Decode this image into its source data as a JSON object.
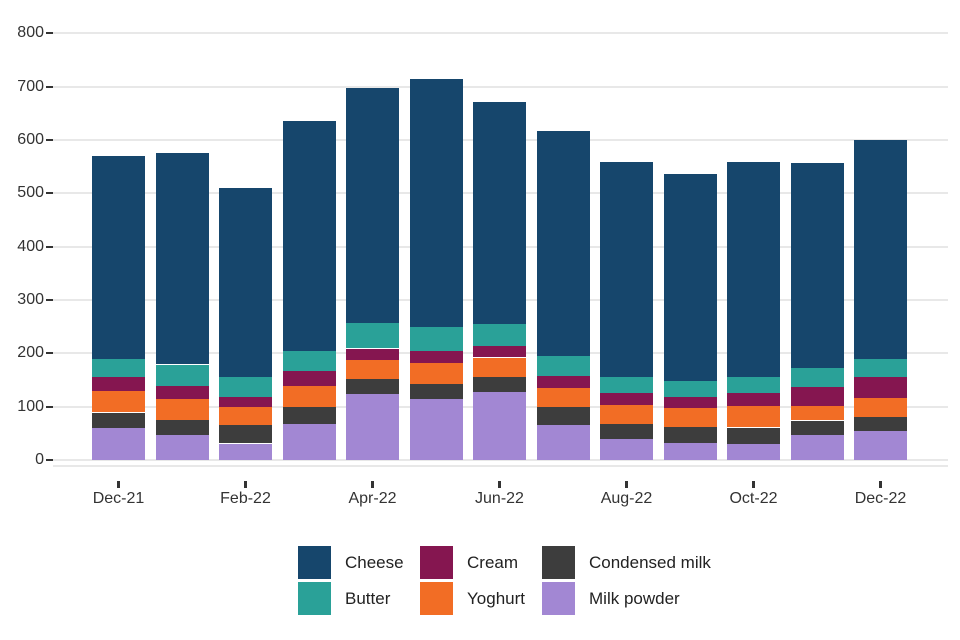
{
  "chart_data": {
    "type": "bar",
    "stacked": true,
    "title": "",
    "xlabel": "",
    "ylabel": "",
    "categories": [
      "Dec-21",
      "Jan-22",
      "Feb-22",
      "Mar-22",
      "Apr-22",
      "May-22",
      "Jun-22",
      "Jul-22",
      "Aug-22",
      "Sep-22",
      "Oct-22",
      "Nov-22",
      "Dec-22"
    ],
    "x_tick_labels": [
      "Dec-21",
      "Feb-22",
      "Apr-22",
      "Jun-22",
      "Aug-22",
      "Oct-22",
      "Dec-22"
    ],
    "x_tick_every": 2,
    "series": [
      {
        "name": "Milk powder",
        "color": "#A287D3",
        "values": [
          60,
          47,
          31,
          68,
          123,
          114,
          127,
          66,
          39,
          32,
          30,
          47,
          54
        ]
      },
      {
        "name": "Condensed milk",
        "color": "#3D3D3D",
        "values": [
          29,
          28,
          34,
          31,
          28,
          28,
          28,
          33,
          28,
          30,
          31,
          27,
          27
        ]
      },
      {
        "name": "Yoghurt",
        "color": "#F26D25",
        "values": [
          41,
          40,
          34,
          39,
          36,
          40,
          37,
          36,
          36,
          35,
          40,
          28,
          35
        ]
      },
      {
        "name": "Cream",
        "color": "#851650",
        "values": [
          26,
          23,
          19,
          28,
          22,
          22,
          22,
          23,
          23,
          22,
          25,
          35,
          39
        ]
      },
      {
        "name": "Butter",
        "color": "#2AA198",
        "values": [
          34,
          41,
          37,
          39,
          48,
          45,
          41,
          37,
          30,
          30,
          30,
          36,
          34
        ]
      },
      {
        "name": "Cheese",
        "color": "#16466C",
        "values": [
          380,
          397,
          355,
          431,
          440,
          465,
          416,
          422,
          402,
          387,
          403,
          384,
          411
        ]
      }
    ],
    "totals": [
      570,
      576,
      510,
      636,
      697,
      714,
      671,
      617,
      558,
      536,
      559,
      557,
      600
    ],
    "ylim": [
      0,
      800
    ],
    "y_ticks": [
      0,
      100,
      200,
      300,
      400,
      500,
      600,
      700,
      800
    ],
    "grid": true,
    "legend_position": "bottom",
    "legend_columns": [
      [
        "Cheese",
        "Butter"
      ],
      [
        "Cream",
        "Yoghurt"
      ],
      [
        "Condensed milk",
        "Milk powder"
      ]
    ]
  },
  "colors": {
    "grid": "#E8E8E8",
    "axis_text": "#333333",
    "background": "#FFFFFF"
  }
}
